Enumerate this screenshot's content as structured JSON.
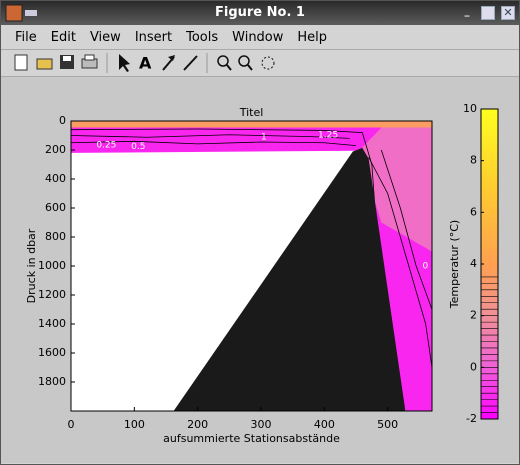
{
  "window": {
    "title": "Figure No. 1",
    "menu": [
      "File",
      "Edit",
      "View",
      "Insert",
      "Tools",
      "Window",
      "Help"
    ]
  },
  "chart_data": {
    "type": "contour",
    "title": "Titel",
    "xlabel": "aufsummierte Stationsabstände",
    "ylabel": "Druck in dbar",
    "xlim": [
      0,
      570
    ],
    "xticks": [
      0,
      100,
      200,
      300,
      400,
      500
    ],
    "ylim": [
      0,
      2000
    ],
    "yreverse": true,
    "yticks": [
      0,
      200,
      400,
      600,
      800,
      1000,
      1200,
      1400,
      1600,
      1800
    ],
    "colorbar": {
      "label": "Temperatur (°C)",
      "clim": [
        -2,
        10
      ],
      "ticks": [
        -2,
        0,
        2,
        4,
        6,
        8,
        10
      ],
      "levels": [
        -1.75,
        -1.5,
        -1.25,
        -1,
        -0.75,
        -0.5,
        -0.25,
        0,
        0.25,
        0.5,
        0.75,
        1,
        1.25,
        1.5,
        1.75,
        2,
        2.25,
        2.5,
        2.75,
        3,
        3.25,
        3.5
      ],
      "colormap": [
        {
          "value": -2,
          "color": "#ff00ff"
        },
        {
          "value": 0,
          "color": "#f060d8"
        },
        {
          "value": 2,
          "color": "#f09098"
        },
        {
          "value": 4,
          "color": "#ffa050"
        },
        {
          "value": 7,
          "color": "#ffcc30"
        },
        {
          "value": 10,
          "color": "#ffff20"
        }
      ]
    },
    "field": [
      {
        "value": -1.2,
        "x": [
          0,
          570,
          570,
          528,
          450,
          0
        ],
        "y": [
          0,
          0,
          2000,
          2000,
          205,
          220
        ]
      },
      {
        "value": 0.6,
        "x": [
          455,
          500,
          570,
          570,
          490
        ],
        "y": [
          205,
          0,
          0,
          900,
          700
        ]
      },
      {
        "value": 3.5,
        "x": [
          0,
          570,
          570,
          0
        ],
        "y": [
          0,
          0,
          45,
          45
        ]
      }
    ],
    "bathymetry": {
      "color": "#1a1a1a",
      "x": [
        162,
        445,
        460,
        470,
        528
      ],
      "y": [
        2000,
        210,
        185,
        260,
        2000
      ]
    },
    "contours": [
      {
        "level": 0.5,
        "x": [
          0,
          100,
          200,
          300,
          400,
          450
        ],
        "y": [
          150,
          140,
          158,
          145,
          150,
          170
        ]
      },
      {
        "level": 1,
        "x": [
          0,
          120,
          250,
          380,
          440
        ],
        "y": [
          100,
          112,
          95,
          108,
          120
        ]
      },
      {
        "level": 2,
        "x": [
          0,
          200,
          400,
          460,
          475,
          485
        ],
        "y": [
          60,
          55,
          65,
          80,
          300,
          900
        ]
      },
      {
        "level": 0,
        "x": [
          470,
          500,
          520,
          540,
          560,
          570
        ],
        "y": [
          250,
          500,
          800,
          1100,
          1400,
          1700
        ]
      },
      {
        "level": -0.5,
        "x": [
          490,
          520,
          545,
          570
        ],
        "y": [
          200,
          600,
          1000,
          1300
        ]
      }
    ],
    "contour_labels": [
      {
        "text": "0.25",
        "x": 40,
        "y": 165
      },
      {
        "text": "0.5",
        "x": 95,
        "y": 175
      },
      {
        "text": "1",
        "x": 300,
        "y": 112
      },
      {
        "text": "1.25",
        "x": 390,
        "y": 95
      },
      {
        "text": "0",
        "x": 555,
        "y": 1000
      }
    ]
  }
}
